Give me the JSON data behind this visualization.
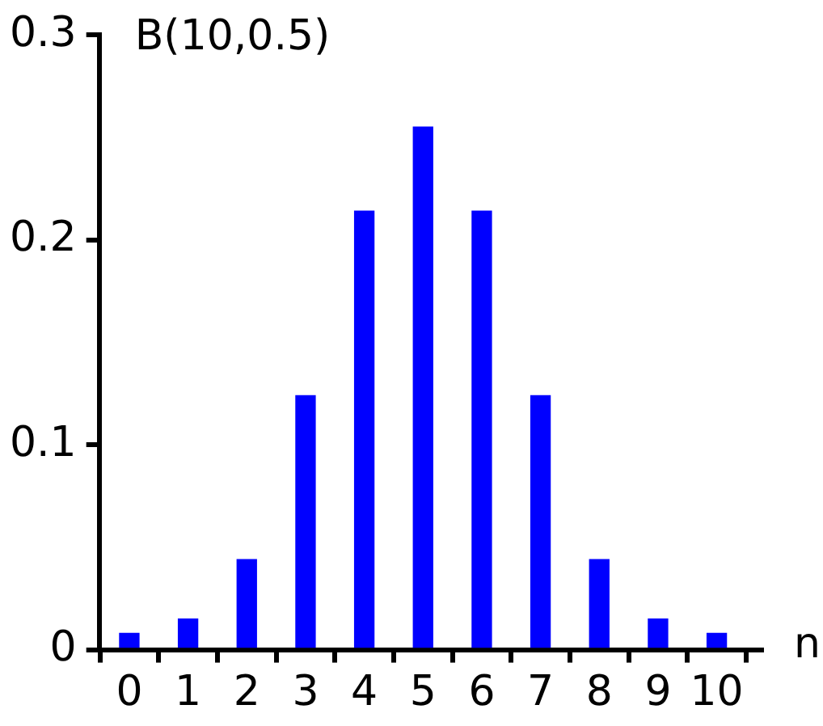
{
  "chart_data": {
    "type": "bar",
    "title": "B(10,0.5)",
    "xlabel": "n",
    "x": [
      0,
      1,
      2,
      3,
      4,
      5,
      6,
      7,
      8,
      9,
      10
    ],
    "values": [
      0.008,
      0.015,
      0.044,
      0.124,
      0.214,
      0.255,
      0.214,
      0.124,
      0.044,
      0.015,
      0.008
    ],
    "color": "#0000ff",
    "xlim": [
      0,
      10.25
    ],
    "xticks": [
      0,
      1,
      2,
      3,
      4,
      5,
      6,
      7,
      8,
      9,
      10
    ],
    "ylim": [
      0,
      0.3
    ],
    "yticks": [
      0,
      0.1,
      0.2,
      0.3
    ]
  }
}
